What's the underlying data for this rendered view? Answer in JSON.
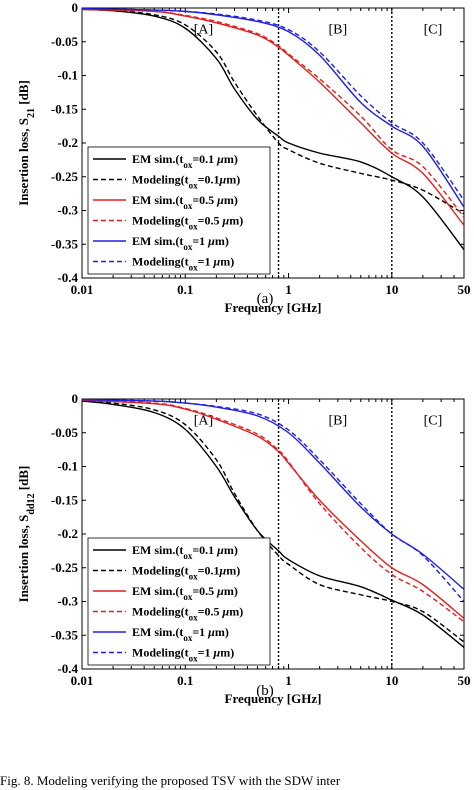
{
  "chart_data": [
    {
      "type": "line",
      "caption": "(a)",
      "xlabel": "Frequency [GHz]",
      "ylabel_main": "Insertion loss, S",
      "ylabel_sub": "21",
      "ylabel_tail": " [dB]",
      "xscale": "log",
      "xlim": [
        0.01,
        50
      ],
      "ylim": [
        -0.4,
        0
      ],
      "xticks": [
        0.01,
        0.1,
        1,
        10,
        50
      ],
      "xtick_labels": [
        "0.01",
        "0.1",
        "1",
        "10",
        "50"
      ],
      "yticks": [
        0,
        -0.05,
        -0.1,
        -0.15,
        -0.2,
        -0.25,
        -0.3,
        -0.35,
        -0.4
      ],
      "ytick_labels": [
        "0",
        "-0.05",
        "-0.1",
        "-0.15",
        "-0.2",
        "-0.25",
        "-0.3",
        "-0.35",
        "-0.4"
      ],
      "vlines": [
        0.8,
        10
      ],
      "regions": [
        {
          "label": "[A]",
          "x": 0.15,
          "y": -0.03
        },
        {
          "label": "[B]",
          "x": 3,
          "y": -0.03
        },
        {
          "label": "[C]",
          "x": 25,
          "y": -0.03
        }
      ],
      "legend_position": "bottom-left",
      "series": [
        {
          "name": "EM sim.(tox=0.1 μm)",
          "label": [
            "EM sim.(t",
            "ox",
            "=0.1 ",
            "μ",
            "m)"
          ],
          "color": "#000000",
          "dash": "solid",
          "x": [
            0.01,
            0.02,
            0.05,
            0.1,
            0.2,
            0.3,
            0.5,
            0.8,
            1,
            2,
            5,
            10,
            20,
            50
          ],
          "y": [
            -0.002,
            -0.004,
            -0.012,
            -0.03,
            -0.075,
            -0.12,
            -0.165,
            -0.19,
            -0.2,
            -0.215,
            -0.228,
            -0.25,
            -0.28,
            -0.358
          ]
        },
        {
          "name": "Modeling(tox=0.1μm)",
          "label": [
            "Modeling(t",
            "ox",
            "=0.1",
            "μ",
            "m)"
          ],
          "color": "#000000",
          "dash": "dashed",
          "x": [
            0.01,
            0.02,
            0.05,
            0.1,
            0.2,
            0.3,
            0.5,
            0.8,
            1,
            2,
            5,
            10,
            20,
            50
          ],
          "y": [
            -0.002,
            -0.004,
            -0.01,
            -0.025,
            -0.065,
            -0.11,
            -0.16,
            -0.2,
            -0.21,
            -0.23,
            -0.245,
            -0.255,
            -0.27,
            -0.305
          ]
        },
        {
          "name": "EM sim.(tox=0.5 μm)",
          "label": [
            "EM sim.(t",
            "ox",
            "=0.5 ",
            "μ",
            "m)"
          ],
          "color": "#e02020",
          "dash": "solid",
          "x": [
            0.01,
            0.05,
            0.1,
            0.2,
            0.5,
            0.8,
            1,
            2,
            5,
            10,
            20,
            50
          ],
          "y": [
            -0.002,
            -0.005,
            -0.012,
            -0.022,
            -0.04,
            -0.058,
            -0.07,
            -0.11,
            -0.17,
            -0.215,
            -0.245,
            -0.322
          ]
        },
        {
          "name": "Modeling(tox=0.5 μm)",
          "label": [
            "Modeling(t",
            "ox",
            "=0.5 ",
            "μ",
            "m)"
          ],
          "color": "#e02020",
          "dash": "dashed",
          "x": [
            0.01,
            0.05,
            0.1,
            0.2,
            0.5,
            0.8,
            1,
            2,
            5,
            10,
            20,
            50
          ],
          "y": [
            -0.002,
            -0.005,
            -0.011,
            -0.02,
            -0.038,
            -0.056,
            -0.068,
            -0.105,
            -0.16,
            -0.21,
            -0.235,
            -0.31
          ]
        },
        {
          "name": "EM sim.(tox=1 μm)",
          "label": [
            "EM sim.(t",
            "ox",
            "=1 ",
            "μ",
            "m)"
          ],
          "color": "#2020e0",
          "dash": "solid",
          "x": [
            0.01,
            0.05,
            0.1,
            0.2,
            0.5,
            1,
            2,
            5,
            10,
            20,
            50
          ],
          "y": [
            -0.001,
            -0.003,
            -0.005,
            -0.01,
            -0.02,
            -0.035,
            -0.07,
            -0.14,
            -0.175,
            -0.205,
            -0.295
          ]
        },
        {
          "name": "Modeling(tox=1 μm)",
          "label": [
            "Modeling(t",
            "ox",
            "=1 ",
            "μ",
            "m)"
          ],
          "color": "#2020e0",
          "dash": "dashed",
          "x": [
            0.01,
            0.05,
            0.1,
            0.2,
            0.5,
            1,
            2,
            5,
            10,
            20,
            50
          ],
          "y": [
            -0.001,
            -0.003,
            -0.005,
            -0.009,
            -0.018,
            -0.032,
            -0.065,
            -0.13,
            -0.17,
            -0.2,
            -0.285
          ]
        }
      ]
    },
    {
      "type": "line",
      "caption": "(b)",
      "xlabel": "Frequency [GHz]",
      "ylabel_main": "Insertion loss, S",
      "ylabel_sub": "dd12",
      "ylabel_tail": " [dB]",
      "xscale": "log",
      "xlim": [
        0.01,
        50
      ],
      "ylim": [
        -0.4,
        0
      ],
      "xticks": [
        0.01,
        0.1,
        1,
        10,
        50
      ],
      "xtick_labels": [
        "0.01",
        "0.1",
        "1",
        "10",
        "50"
      ],
      "yticks": [
        0,
        -0.05,
        -0.1,
        -0.15,
        -0.2,
        -0.25,
        -0.3,
        -0.35,
        -0.4
      ],
      "ytick_labels": [
        "0",
        "-0.05",
        "-0.1",
        "-0.15",
        "-0.2",
        "-0.25",
        "-0.3",
        "-0.35",
        "-0.4"
      ],
      "vlines": [
        0.8,
        10
      ],
      "regions": [
        {
          "label": "[A]",
          "x": 0.15,
          "y": -0.03
        },
        {
          "label": "[B]",
          "x": 3,
          "y": -0.03
        },
        {
          "label": "[C]",
          "x": 25,
          "y": -0.03
        }
      ],
      "legend_position": "bottom-left",
      "series": [
        {
          "name": "EM sim.(tox=0.1 μm)",
          "label": [
            "EM sim.(t",
            "ox",
            "=0.1 ",
            "μ",
            "m)"
          ],
          "color": "#000000",
          "dash": "solid",
          "x": [
            0.01,
            0.02,
            0.05,
            0.1,
            0.2,
            0.3,
            0.5,
            0.8,
            1,
            2,
            5,
            10,
            20,
            50
          ],
          "y": [
            -0.003,
            -0.008,
            -0.02,
            -0.045,
            -0.1,
            -0.145,
            -0.195,
            -0.225,
            -0.238,
            -0.262,
            -0.278,
            -0.298,
            -0.32,
            -0.368
          ]
        },
        {
          "name": "Modeling(tox=0.1μm)",
          "label": [
            "Modeling(t",
            "ox",
            "=0.1",
            "μ",
            "m)"
          ],
          "color": "#000000",
          "dash": "dashed",
          "x": [
            0.01,
            0.02,
            0.05,
            0.1,
            0.2,
            0.3,
            0.5,
            0.8,
            1,
            2,
            5,
            10,
            20,
            50
          ],
          "y": [
            -0.002,
            -0.006,
            -0.016,
            -0.038,
            -0.09,
            -0.14,
            -0.195,
            -0.232,
            -0.245,
            -0.275,
            -0.29,
            -0.3,
            -0.315,
            -0.36
          ]
        },
        {
          "name": "EM sim.(tox=0.5 μm)",
          "label": [
            "EM sim.(t",
            "ox",
            "=0.5 ",
            "μ",
            "m)"
          ],
          "color": "#e02020",
          "dash": "solid",
          "x": [
            0.01,
            0.05,
            0.1,
            0.2,
            0.5,
            0.8,
            1,
            2,
            5,
            10,
            20,
            50
          ],
          "y": [
            -0.002,
            -0.007,
            -0.015,
            -0.03,
            -0.055,
            -0.078,
            -0.095,
            -0.15,
            -0.21,
            -0.25,
            -0.275,
            -0.325
          ]
        },
        {
          "name": "Modeling(tox=0.5 μm)",
          "label": [
            "Modeling(t",
            "ox",
            "=0.5 ",
            "μ",
            "m)"
          ],
          "color": "#e02020",
          "dash": "dashed",
          "x": [
            0.01,
            0.05,
            0.1,
            0.2,
            0.5,
            0.8,
            1,
            2,
            5,
            10,
            20,
            50
          ],
          "y": [
            -0.002,
            -0.006,
            -0.014,
            -0.028,
            -0.052,
            -0.076,
            -0.093,
            -0.155,
            -0.22,
            -0.26,
            -0.285,
            -0.33
          ]
        },
        {
          "name": "EM sim.(tox=1 μm)",
          "label": [
            "EM sim.(t",
            "ox",
            "=1 ",
            "μ",
            "m)"
          ],
          "color": "#2020e0",
          "dash": "solid",
          "x": [
            0.01,
            0.05,
            0.1,
            0.2,
            0.5,
            1,
            2,
            5,
            10,
            20,
            50
          ],
          "y": [
            -0.001,
            -0.003,
            -0.006,
            -0.012,
            -0.025,
            -0.05,
            -0.095,
            -0.16,
            -0.2,
            -0.23,
            -0.282
          ]
        },
        {
          "name": "Modeling(tox=1 μm)",
          "label": [
            "Modeling(t",
            "ox",
            "=1 ",
            "μ",
            "m)"
          ],
          "color": "#2020e0",
          "dash": "dashed",
          "x": [
            0.01,
            0.05,
            0.1,
            0.2,
            0.5,
            1,
            2,
            5,
            10,
            20,
            50
          ],
          "y": [
            -0.001,
            -0.003,
            -0.006,
            -0.011,
            -0.022,
            -0.046,
            -0.09,
            -0.155,
            -0.2,
            -0.232,
            -0.3
          ]
        }
      ]
    }
  ],
  "footer_text": "Fig. 8.  Modeling verifying the proposed TSV with the SDW inter"
}
